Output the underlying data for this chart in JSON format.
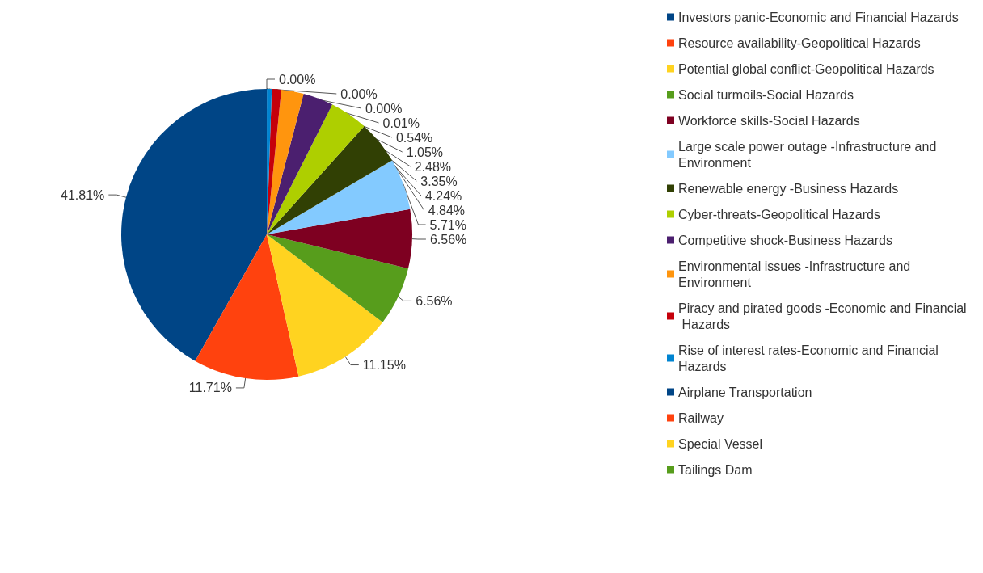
{
  "chart_data": {
    "type": "pie",
    "categories": [
      "Investors panic-Economic and Financial Hazards",
      "Resource availability-Geopolitical Hazards",
      "Potential global conflict-Geopolitical Hazards",
      "Social turmoils-Social Hazards",
      "Workforce skills-Social Hazards",
      "Large scale power outage -Infrastructure and Environment",
      "Renewable energy -Business Hazards",
      "Cyber-threats-Geopolitical Hazards",
      "Competitive shock-Business Hazards",
      "Environmental issues -Infrastructure and Environment",
      "Piracy and pirated goods -Economic and Financial Hazards",
      "Rise of interest rates-Economic and Financial Hazards",
      "Airplane Transportation",
      "Railway",
      "Special Vessel",
      "Tailings Dam"
    ],
    "values": [
      41.81,
      11.71,
      11.15,
      6.56,
      6.56,
      5.71,
      4.84,
      4.24,
      3.35,
      2.48,
      1.05,
      0.54,
      0.01,
      0,
      0,
      0
    ],
    "value_labels": [
      "41.81%",
      "11.71%",
      "11.15%",
      "6.56%",
      "6.56%",
      "5.71%",
      "4.84%",
      "4.24%",
      "3.35%",
      "2.48%",
      "1.05%",
      "0.54%",
      "0.01%",
      "0.00%",
      "0.00%",
      "0.00%"
    ],
    "colors": [
      "#004586",
      "#ff420e",
      "#ffd320",
      "#579d1c",
      "#7e0021",
      "#83caff",
      "#314004",
      "#aecf00",
      "#4b1f6f",
      "#ff950e",
      "#c5000b",
      "#0084d1",
      "#004586",
      "#ff420e",
      "#ffd320",
      "#579d1c"
    ],
    "legend": "right"
  }
}
